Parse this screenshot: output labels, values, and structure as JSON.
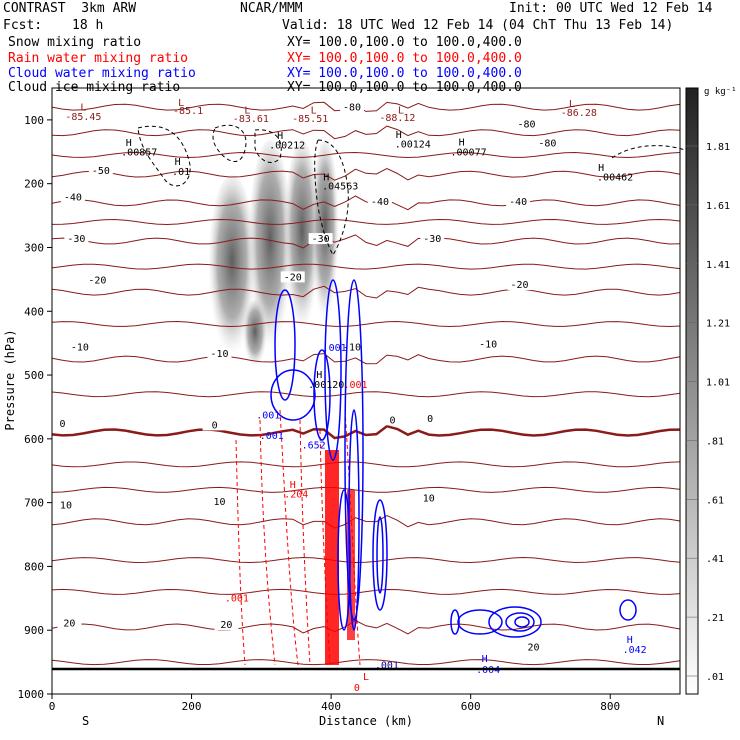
{
  "header": {
    "title_left": "CONTRAST  3km ARW",
    "title_center": "NCAR/MMM",
    "init": "Init: 00 UTC Wed 12 Feb 14",
    "fcst_label": "Fcst:",
    "fcst_value": "18 h",
    "valid": "Valid: 18 UTC Wed 12 Feb 14 (04 ChT Thu 13 Feb 14)"
  },
  "legend": [
    {
      "name": "Snow mixing ratio",
      "xy": "XY= 100.0,100.0 to 100.0,400.0",
      "color": "#000000"
    },
    {
      "name": "Rain water mixing ratio",
      "xy": "XY= 100.0,100.0 to 100.0,400.0",
      "color": "#ff0000"
    },
    {
      "name": "Cloud water mixing ratio",
      "xy": "XY= 100.0,100.0 to 100.0,400.0",
      "color": "#0000ff"
    },
    {
      "name": "Cloud ice mixing ratio",
      "xy": "XY= 100.0,100.0 to 100.0,400.0",
      "color": "#000000"
    }
  ],
  "chart_data": {
    "type": "cross-section",
    "xlabel": "Distance (km)",
    "ylabel": "Pressure (hPa)",
    "xlim": [
      0,
      900
    ],
    "ylim": [
      1000,
      50
    ],
    "x_ticks": [
      0,
      200,
      400,
      600,
      800
    ],
    "y_ticks": [
      100,
      200,
      300,
      400,
      500,
      600,
      700,
      800,
      900,
      1000
    ],
    "x_end_labels": {
      "left": "S",
      "right": "N"
    },
    "colorbar": {
      "unit": "g kg⁻¹",
      "labels": [
        "1.81",
        "1.61",
        "1.41",
        "1.21",
        "1.01",
        ".81",
        ".61",
        ".41",
        ".21",
        ".01"
      ]
    },
    "isotherms": [
      {
        "value": -80,
        "p": 80
      },
      {
        "value": -60,
        "p": 120
      },
      {
        "value": -50,
        "p": 185
      },
      {
        "value": -40,
        "p": 230
      },
      {
        "value": -30,
        "p": 290
      },
      {
        "value": -20,
        "p": 370
      },
      {
        "value": -10,
        "p": 475
      },
      {
        "value": 0,
        "p": 590
      },
      {
        "value": 10,
        "p": 730
      },
      {
        "value": 20,
        "p": 895
      }
    ],
    "isotherm_labels": [
      {
        "text": "-80",
        "x": 430,
        "p": 84
      },
      {
        "text": "-80",
        "x": 680,
        "p": 110
      },
      {
        "text": "-80",
        "x": 710,
        "p": 140
      },
      {
        "text": "-50",
        "x": 70,
        "p": 183
      },
      {
        "text": "-40",
        "x": 30,
        "p": 225
      },
      {
        "text": "-40",
        "x": 470,
        "p": 232
      },
      {
        "text": "-40",
        "x": 668,
        "p": 232
      },
      {
        "text": "-30",
        "x": 35,
        "p": 290
      },
      {
        "text": "-30",
        "x": 385,
        "p": 290
      },
      {
        "text": "-30",
        "x": 545,
        "p": 290
      },
      {
        "text": "-20",
        "x": 65,
        "p": 355
      },
      {
        "text": "-20",
        "x": 345,
        "p": 350
      },
      {
        "text": "-20",
        "x": 670,
        "p": 362
      },
      {
        "text": "-10",
        "x": 40,
        "p": 460
      },
      {
        "text": "-10",
        "x": 240,
        "p": 470
      },
      {
        "text": "-10",
        "x": 430,
        "p": 460
      },
      {
        "text": "-10",
        "x": 625,
        "p": 455
      },
      {
        "text": "0",
        "x": 15,
        "p": 580
      },
      {
        "text": "0",
        "x": 233,
        "p": 582
      },
      {
        "text": "0",
        "x": 488,
        "p": 574
      },
      {
        "text": "0",
        "x": 542,
        "p": 572
      },
      {
        "text": "10",
        "x": 20,
        "p": 708
      },
      {
        "text": "10",
        "x": 240,
        "p": 702
      },
      {
        "text": "10",
        "x": 540,
        "p": 697
      },
      {
        "text": "20",
        "x": 25,
        "p": 893
      },
      {
        "text": "20",
        "x": 250,
        "p": 895
      },
      {
        "text": "20",
        "x": 690,
        "p": 930
      }
    ],
    "extrema_labels": [
      {
        "text": "L",
        "x": 45,
        "p": 85,
        "color": "#8b1a1a"
      },
      {
        "text": "-85.45",
        "x": 45,
        "p": 100,
        "color": "#8b1a1a"
      },
      {
        "text": "L",
        "x": 185,
        "p": 78,
        "color": "#8b1a1a"
      },
      {
        "text": "-85.1",
        "x": 195,
        "p": 91,
        "color": "#8b1a1a"
      },
      {
        "text": "L",
        "x": 280,
        "p": 90,
        "color": "#8b1a1a"
      },
      {
        "text": "-83.61",
        "x": 285,
        "p": 103,
        "color": "#8b1a1a"
      },
      {
        "text": "L",
        "x": 375,
        "p": 90,
        "color": "#8b1a1a"
      },
      {
        "text": "-85.51",
        "x": 370,
        "p": 103,
        "color": "#8b1a1a"
      },
      {
        "text": "L",
        "x": 500,
        "p": 90,
        "color": "#8b1a1a"
      },
      {
        "text": "-88.12",
        "x": 495,
        "p": 102,
        "color": "#8b1a1a"
      },
      {
        "text": "L",
        "x": 745,
        "p": 80,
        "color": "#8b1a1a"
      },
      {
        "text": "-86.28",
        "x": 755,
        "p": 94,
        "color": "#8b1a1a"
      },
      {
        "text": "H",
        "x": 110,
        "p": 141,
        "color": "#000000"
      },
      {
        "text": ".00857",
        "x": 125,
        "p": 156,
        "color": "#000000"
      },
      {
        "text": "H",
        "x": 180,
        "p": 171,
        "color": "#000000"
      },
      {
        "text": ".01",
        "x": 185,
        "p": 186,
        "color": "#000000"
      },
      {
        "text": "H",
        "x": 327,
        "p": 130,
        "color": "#000000"
      },
      {
        "text": ".00212",
        "x": 337,
        "p": 145,
        "color": "#000000"
      },
      {
        "text": "H",
        "x": 497,
        "p": 128,
        "color": "#000000"
      },
      {
        "text": ".00124",
        "x": 517,
        "p": 143,
        "color": "#000000"
      },
      {
        "text": "H",
        "x": 587,
        "p": 140,
        "color": "#000000"
      },
      {
        "text": ".00077",
        "x": 597,
        "p": 156,
        "color": "#000000"
      },
      {
        "text": "H",
        "x": 393,
        "p": 195,
        "color": "#000000"
      },
      {
        "text": ".04563",
        "x": 413,
        "p": 209,
        "color": "#000000"
      },
      {
        "text": "H",
        "x": 787,
        "p": 180,
        "color": "#000000"
      },
      {
        "text": ".00462",
        "x": 807,
        "p": 195,
        "color": "#000000"
      },
      {
        "text": "H",
        "x": 383,
        "p": 505,
        "color": "#000000"
      },
      {
        "text": ".00120",
        "x": 393,
        "p": 520,
        "color": "#000000"
      },
      {
        "text": ".001",
        "x": 405,
        "p": 462,
        "color": "#0000ff"
      },
      {
        "text": ".001",
        "x": 435,
        "p": 520,
        "color": "#ff0000"
      },
      {
        "text": ".001",
        "x": 310,
        "p": 568,
        "color": "#0000ff"
      },
      {
        "text": ".001",
        "x": 315,
        "p": 600,
        "color": "#0000ff"
      },
      {
        "text": ".652",
        "x": 375,
        "p": 615,
        "color": "#0000ff"
      },
      {
        "text": "H",
        "x": 345,
        "p": 677,
        "color": "#ff0000"
      },
      {
        "text": ".204",
        "x": 350,
        "p": 692,
        "color": "#ff0000"
      },
      {
        "text": ".001",
        "x": 265,
        "p": 855,
        "color": "#ff0000"
      },
      {
        "text": ".001",
        "x": 480,
        "p": 960,
        "color": "#00008b"
      },
      {
        "text": "H",
        "x": 620,
        "p": 950,
        "color": "#0000ff"
      },
      {
        "text": ".004",
        "x": 625,
        "p": 967,
        "color": "#0000ff"
      },
      {
        "text": "H",
        "x": 828,
        "p": 920,
        "color": "#0000ff"
      },
      {
        "text": ".042",
        "x": 835,
        "p": 936,
        "color": "#0000ff"
      },
      {
        "text": "L",
        "x": 450,
        "p": 978,
        "color": "#ff0000"
      },
      {
        "text": "0",
        "x": 437,
        "p": 995,
        "color": "#ff0000"
      }
    ]
  }
}
